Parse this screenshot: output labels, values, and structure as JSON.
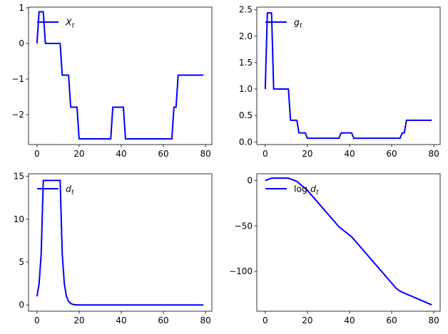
{
  "chart_data": [
    {
      "type": "line",
      "legend": [
        "X",
        "t"
      ],
      "legend_location": "upper-left",
      "color": "#0000ff",
      "xlim": [
        -4,
        83
      ],
      "ylim": [
        -2.84,
        1.02
      ],
      "xticks": [
        0,
        20,
        40,
        60,
        80
      ],
      "yticks": [
        -2,
        -1,
        0,
        1
      ],
      "ytick_labels": [
        "−2",
        "−1",
        "0",
        "1"
      ],
      "x": [
        0,
        1,
        2,
        3,
        4,
        5,
        6,
        7,
        8,
        9,
        10,
        11,
        12,
        13,
        14,
        15,
        16,
        17,
        18,
        19,
        20,
        21,
        22,
        23,
        24,
        25,
        26,
        27,
        28,
        29,
        30,
        31,
        32,
        33,
        34,
        35,
        36,
        37,
        38,
        39,
        40,
        41,
        42,
        43,
        44,
        45,
        46,
        47,
        48,
        49,
        50,
        51,
        52,
        53,
        54,
        55,
        56,
        57,
        58,
        59,
        60,
        61,
        62,
        63,
        64,
        65,
        66,
        67,
        68,
        69,
        70,
        71,
        72,
        73,
        74,
        75,
        76,
        77,
        78,
        79
      ],
      "y": [
        0,
        0.89,
        0.89,
        0.89,
        0,
        0,
        0,
        0,
        0,
        0,
        0,
        0,
        -0.89,
        -0.89,
        -0.89,
        -0.89,
        -1.79,
        -1.79,
        -1.79,
        -1.79,
        -2.68,
        -2.68,
        -2.68,
        -2.68,
        -2.68,
        -2.68,
        -2.68,
        -2.68,
        -2.68,
        -2.68,
        -2.68,
        -2.68,
        -2.68,
        -2.68,
        -2.68,
        -2.68,
        -1.79,
        -1.79,
        -1.79,
        -1.79,
        -1.79,
        -1.79,
        -2.68,
        -2.68,
        -2.68,
        -2.68,
        -2.68,
        -2.68,
        -2.68,
        -2.68,
        -2.68,
        -2.68,
        -2.68,
        -2.68,
        -2.68,
        -2.68,
        -2.68,
        -2.68,
        -2.68,
        -2.68,
        -2.68,
        -2.68,
        -2.68,
        -2.68,
        -2.68,
        -1.79,
        -1.79,
        -0.89,
        -0.89,
        -0.89,
        -0.89,
        -0.89,
        -0.89,
        -0.89,
        -0.89,
        -0.89,
        -0.89,
        -0.89,
        -0.89,
        -0.89
      ]
    },
    {
      "type": "line",
      "legend": [
        "g",
        "t"
      ],
      "legend_location": "upper-left",
      "color": "#0000ff",
      "xlim": [
        -4,
        83
      ],
      "ylim": [
        -0.05,
        2.55
      ],
      "xticks": [
        0,
        20,
        40,
        60,
        80
      ],
      "yticks": [
        0,
        0.5,
        1.0,
        1.5,
        2.0,
        2.5
      ],
      "ytick_labels": [
        "0.0",
        "0.5",
        "1.0",
        "1.5",
        "2.0",
        "2.5"
      ],
      "x": [
        0,
        1,
        2,
        3,
        4,
        5,
        6,
        7,
        8,
        9,
        10,
        11,
        12,
        13,
        14,
        15,
        16,
        17,
        18,
        19,
        20,
        21,
        22,
        23,
        24,
        25,
        26,
        27,
        28,
        29,
        30,
        31,
        32,
        33,
        34,
        35,
        36,
        37,
        38,
        39,
        40,
        41,
        42,
        43,
        44,
        45,
        46,
        47,
        48,
        49,
        50,
        51,
        52,
        53,
        54,
        55,
        56,
        57,
        58,
        59,
        60,
        61,
        62,
        63,
        64,
        65,
        66,
        67,
        68,
        69,
        70,
        71,
        72,
        73,
        74,
        75,
        76,
        77,
        78,
        79
      ],
      "y": [
        1.0,
        2.44,
        2.44,
        2.44,
        1.0,
        1.0,
        1.0,
        1.0,
        1.0,
        1.0,
        1.0,
        1.0,
        0.41,
        0.41,
        0.41,
        0.41,
        0.17,
        0.17,
        0.17,
        0.17,
        0.07,
        0.07,
        0.07,
        0.07,
        0.07,
        0.07,
        0.07,
        0.07,
        0.07,
        0.07,
        0.07,
        0.07,
        0.07,
        0.07,
        0.07,
        0.07,
        0.17,
        0.17,
        0.17,
        0.17,
        0.17,
        0.17,
        0.07,
        0.07,
        0.07,
        0.07,
        0.07,
        0.07,
        0.07,
        0.07,
        0.07,
        0.07,
        0.07,
        0.07,
        0.07,
        0.07,
        0.07,
        0.07,
        0.07,
        0.07,
        0.07,
        0.07,
        0.07,
        0.07,
        0.07,
        0.17,
        0.17,
        0.41,
        0.41,
        0.41,
        0.41,
        0.41,
        0.41,
        0.41,
        0.41,
        0.41,
        0.41,
        0.41,
        0.41,
        0.41
      ]
    },
    {
      "type": "line",
      "legend": [
        "d",
        "t"
      ],
      "legend_location": "upper-left",
      "color": "#0000ff",
      "xlim": [
        -4,
        83
      ],
      "ylim": [
        -0.73,
        15.3
      ],
      "xticks": [
        0,
        20,
        40,
        60,
        80
      ],
      "yticks": [
        0,
        5,
        10,
        15
      ],
      "ytick_labels": [
        "0",
        "5",
        "10",
        "15"
      ],
      "x": [
        0,
        1,
        2,
        3,
        4,
        5,
        6,
        7,
        8,
        9,
        10,
        11,
        12,
        13,
        14,
        15,
        16,
        17,
        18,
        19,
        20,
        21,
        22,
        23,
        24,
        25,
        26,
        27,
        28,
        29,
        30,
        31,
        32,
        33,
        34,
        35,
        36,
        37,
        38,
        39,
        40,
        41,
        42,
        43,
        44,
        45,
        46,
        47,
        48,
        49,
        50,
        51,
        52,
        53,
        54,
        55,
        56,
        57,
        58,
        59,
        60,
        61,
        62,
        63,
        64,
        65,
        66,
        67,
        68,
        69,
        70,
        71,
        72,
        73,
        74,
        75,
        76,
        77,
        78,
        79
      ],
      "y": [
        1.0,
        2.44,
        5.95,
        14.52,
        14.52,
        14.52,
        14.52,
        14.52,
        14.52,
        14.52,
        14.52,
        14.52,
        5.95,
        2.44,
        1.0,
        0.41,
        0.17,
        0.07,
        0.03,
        0.01,
        0.005,
        0,
        0,
        0,
        0,
        0,
        0,
        0,
        0,
        0,
        0,
        0,
        0,
        0,
        0,
        0,
        0,
        0,
        0,
        0,
        0,
        0,
        0,
        0,
        0,
        0,
        0,
        0,
        0,
        0,
        0,
        0,
        0,
        0,
        0,
        0,
        0,
        0,
        0,
        0,
        0,
        0,
        0,
        0,
        0,
        0,
        0,
        0,
        0,
        0,
        0,
        0,
        0,
        0,
        0,
        0,
        0,
        0,
        0,
        0
      ]
    },
    {
      "type": "line",
      "legend": [
        "log d",
        "t"
      ],
      "legend_location": "upper-left",
      "color": "#0000ff",
      "xlim": [
        -4,
        83
      ],
      "ylim": [
        -144,
        7.5
      ],
      "xticks": [
        0,
        20,
        40,
        60,
        80
      ],
      "yticks": [
        0,
        -50,
        -100
      ],
      "ytick_labels": [
        "0",
        "−50",
        "−100"
      ],
      "x": [
        0,
        3,
        11,
        15,
        20,
        35,
        41,
        60,
        62,
        64,
        66,
        79
      ],
      "y": [
        0,
        2.68,
        2.68,
        -0.9,
        -10.8,
        -51.0,
        -62.0,
        -113.0,
        -118.5,
        -122.0,
        -124.0,
        -137.0
      ]
    }
  ]
}
